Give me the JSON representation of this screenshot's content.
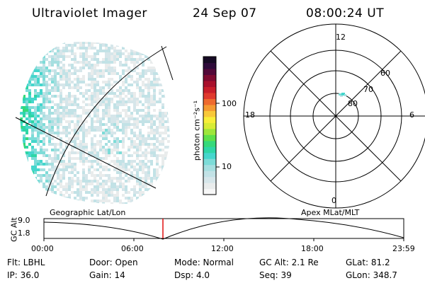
{
  "header": {
    "instrument": "Ultraviolet Imager",
    "date": "24 Sep 07",
    "time": "08:00:24 UT"
  },
  "colorbar": {
    "unit_label": "photon cm⁻²s⁻¹",
    "scale": "log",
    "tick_labels": [
      "100",
      "10"
    ],
    "colors": [
      "#f7f7f7",
      "#e9ecec",
      "#d6e6ea",
      "#c2e2e6",
      "#a6dfe0",
      "#7ddcd8",
      "#45d6cc",
      "#2ed6a6",
      "#35d97a",
      "#5ee04a",
      "#9ee63a",
      "#d8ec36",
      "#f8ee3a",
      "#f8c83a",
      "#f59a32",
      "#ee6a2e",
      "#e03a2e",
      "#c81e2a",
      "#a8102c",
      "#7e0a30",
      "#520838",
      "#2e0a3a",
      "#160a24"
    ]
  },
  "polar_plot": {
    "mlt_labels": {
      "top": "12",
      "right": "6",
      "bottom": "0",
      "left": "18"
    },
    "lat_labels": [
      "60",
      "70",
      "80"
    ]
  },
  "timeline": {
    "left_label": "Geographic Lat/Lon",
    "right_label": "Apex MLat/MLT",
    "axis_title": "GC Alt",
    "y_ticks": [
      "9.0",
      "1.8"
    ],
    "x_ticks": [
      "00:00",
      "06:00",
      "12:00",
      "18:00",
      "23:59"
    ],
    "marker_time": "08:00:24"
  },
  "footer": {
    "row1": {
      "flt": "Flt: LBHL",
      "door": "Door: Open",
      "mode": "Mode: Normal",
      "gcalt": "GC Alt: 2.1 Re",
      "glat": "GLat:  81.2"
    },
    "row2": {
      "ip": "IP: 36.0",
      "gain": "Gain: 14",
      "dsp": "Dsp:       4.0",
      "seq": "Seq: 39",
      "glon": "GLon: 348.7"
    }
  }
}
